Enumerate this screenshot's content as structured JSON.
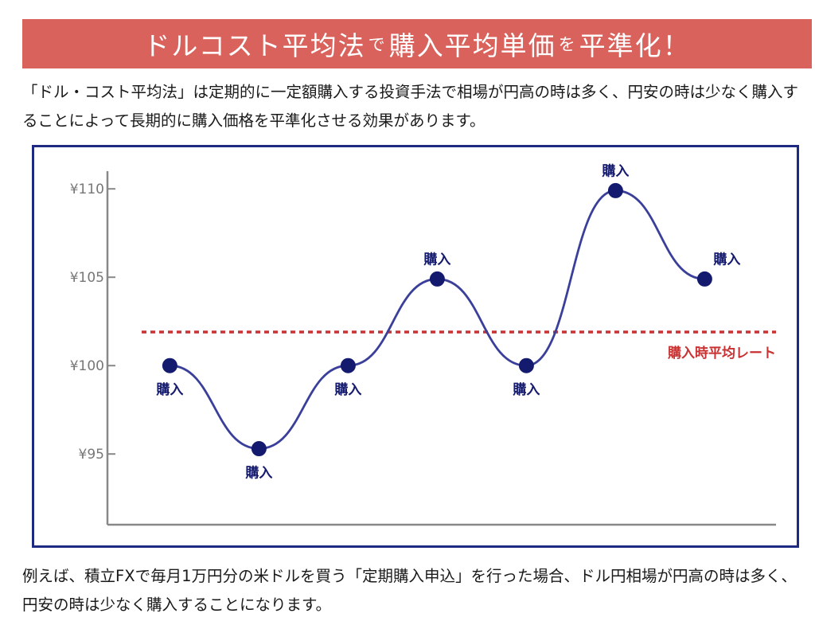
{
  "header": {
    "title_part1": "ドルコスト平均法",
    "title_part2": "で",
    "title_part3": "購入平均単価",
    "title_part4": "を",
    "title_part5": "平準化！",
    "background_color": "#d9635c"
  },
  "intro_text": "「ドル・コスト平均法」は定期的に一定額購入する投資手法で相場が円高の時は多く、円安の時は少なく購入することによって長期的に購入価格を平準化させる効果があります。",
  "outro_text": "例えば、積立FXで毎月1万円分の米ドルを買う「定期購入申込」を行った場合、ドル円相場が円高の時は多く、円安の時は少なく購入することになります。",
  "chart_data": {
    "type": "line",
    "y_ticks": [
      "¥110",
      "¥105",
      "¥100",
      "¥95"
    ],
    "y_tick_values": [
      110,
      105,
      100,
      95
    ],
    "ylim": [
      91,
      111
    ],
    "x": [
      1,
      2,
      3,
      4,
      5,
      6,
      7
    ],
    "xlim": [
      0.3,
      7.8
    ],
    "values": [
      100,
      95.3,
      100,
      104.9,
      100,
      109.9,
      104.9
    ],
    "point_labels": [
      "購入",
      "購入",
      "購入",
      "購入",
      "購入",
      "購入",
      "購入"
    ],
    "point_label_positions": [
      "below",
      "below",
      "below",
      "above",
      "below",
      "above",
      "above-right"
    ],
    "average_line": {
      "label": "購入時平均レート",
      "value": 101.9,
      "color": "#c83232"
    },
    "line_color": "#3a3f9a",
    "marker_color": "#141a6e",
    "axis_color": "#888888",
    "frame_color": "#1e2a82"
  }
}
